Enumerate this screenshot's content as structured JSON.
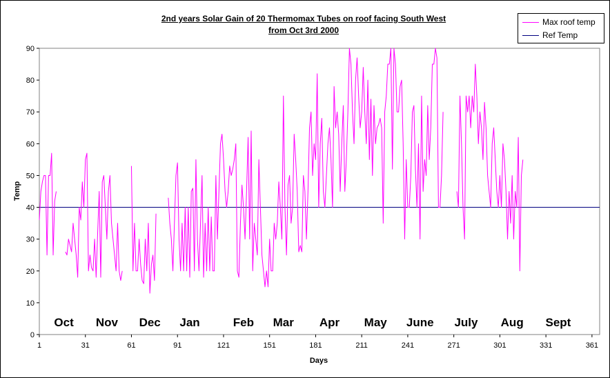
{
  "chart_data": {
    "type": "line",
    "title_line1": "2nd years Solar Gain of 20 Thermomax Tubes on roof facing South West",
    "title_line2": "from Oct 3rd 2000",
    "xlabel": "Days",
    "ylabel": "Temp",
    "xlim": [
      1,
      366
    ],
    "ylim": [
      0,
      90
    ],
    "x_ticks": [
      1,
      31,
      61,
      91,
      121,
      151,
      181,
      211,
      241,
      271,
      301,
      331,
      361
    ],
    "y_ticks": [
      0,
      10,
      20,
      30,
      40,
      50,
      60,
      70,
      80,
      90
    ],
    "grid": false,
    "legend_position": "top-right",
    "month_labels": [
      {
        "label": "Oct",
        "day": 17
      },
      {
        "label": "Nov",
        "day": 45
      },
      {
        "label": "Dec",
        "day": 73
      },
      {
        "label": "Jan",
        "day": 99
      },
      {
        "label": "Feb",
        "day": 134
      },
      {
        "label": "Mar",
        "day": 160
      },
      {
        "label": "Apr",
        "day": 190
      },
      {
        "label": "May",
        "day": 220
      },
      {
        "label": "June",
        "day": 249
      },
      {
        "label": "July",
        "day": 279
      },
      {
        "label": "Aug",
        "day": 309
      },
      {
        "label": "Sept",
        "day": 339
      }
    ],
    "series": [
      {
        "name": "Max roof temp",
        "color": "#ff00ff",
        "x_start": 1,
        "values": [
          36,
          45,
          48,
          50,
          50,
          25,
          50,
          50,
          57,
          25,
          42,
          45,
          null,
          null,
          null,
          null,
          null,
          26,
          25,
          30,
          28,
          26,
          35,
          30,
          25,
          18,
          40,
          36,
          48,
          40,
          55,
          57,
          20,
          25,
          21,
          20,
          30,
          18,
          32,
          45,
          18,
          48,
          50,
          40,
          30,
          45,
          50,
          35,
          30,
          25,
          20,
          35,
          20,
          17,
          20,
          null,
          null,
          null,
          null,
          null,
          53,
          20,
          35,
          20,
          20,
          30,
          22,
          17,
          16,
          30,
          20,
          35,
          13,
          22,
          25,
          17,
          38,
          null,
          null,
          null,
          null,
          null,
          null,
          null,
          43,
          35,
          30,
          20,
          35,
          50,
          54,
          30,
          20,
          35,
          20,
          40,
          20,
          40,
          18,
          45,
          46,
          20,
          55,
          30,
          20,
          35,
          50,
          18,
          35,
          20,
          40,
          20,
          37,
          20,
          20,
          50,
          30,
          45,
          60,
          63,
          55,
          45,
          40,
          45,
          53,
          50,
          52,
          55,
          60,
          20,
          18,
          35,
          47,
          40,
          30,
          45,
          62,
          30,
          64,
          20,
          35,
          30,
          25,
          55,
          40,
          25,
          20,
          15,
          20,
          15,
          30,
          20,
          20,
          35,
          30,
          35,
          48,
          40,
          30,
          75,
          40,
          25,
          47,
          50,
          35,
          40,
          63,
          55,
          45,
          26,
          28,
          26,
          50,
          45,
          30,
          45,
          65,
          70,
          50,
          60,
          55,
          82,
          40,
          60,
          68,
          45,
          40,
          50,
          60,
          65,
          55,
          40,
          78,
          65,
          70,
          63,
          45,
          60,
          72,
          45,
          55,
          70,
          90,
          85,
          70,
          60,
          80,
          87,
          75,
          65,
          70,
          84,
          70,
          60,
          80,
          55,
          74,
          50,
          72,
          60,
          65,
          66,
          68,
          65,
          35,
          70,
          75,
          85,
          85,
          90,
          52,
          90,
          85,
          70,
          70,
          78,
          80,
          60,
          30,
          55,
          40,
          40,
          50,
          70,
          72,
          52,
          40,
          60,
          30,
          75,
          45,
          55,
          50,
          72,
          55,
          65,
          85,
          85,
          90,
          87,
          40,
          40,
          50,
          70,
          null,
          null,
          null,
          null,
          null,
          null,
          null,
          null,
          45,
          40,
          75,
          60,
          40,
          30,
          75,
          70,
          75,
          65,
          75,
          70,
          85,
          75,
          60,
          70,
          65,
          55,
          73,
          65,
          50,
          45,
          40,
          60,
          65,
          55,
          45,
          40,
          50,
          40,
          60,
          55,
          45,
          30,
          45,
          35,
          50,
          30,
          45,
          40,
          62,
          20,
          50,
          55
        ]
      },
      {
        "name": "Ref Temp",
        "color": "#000080",
        "value": 40
      }
    ]
  }
}
